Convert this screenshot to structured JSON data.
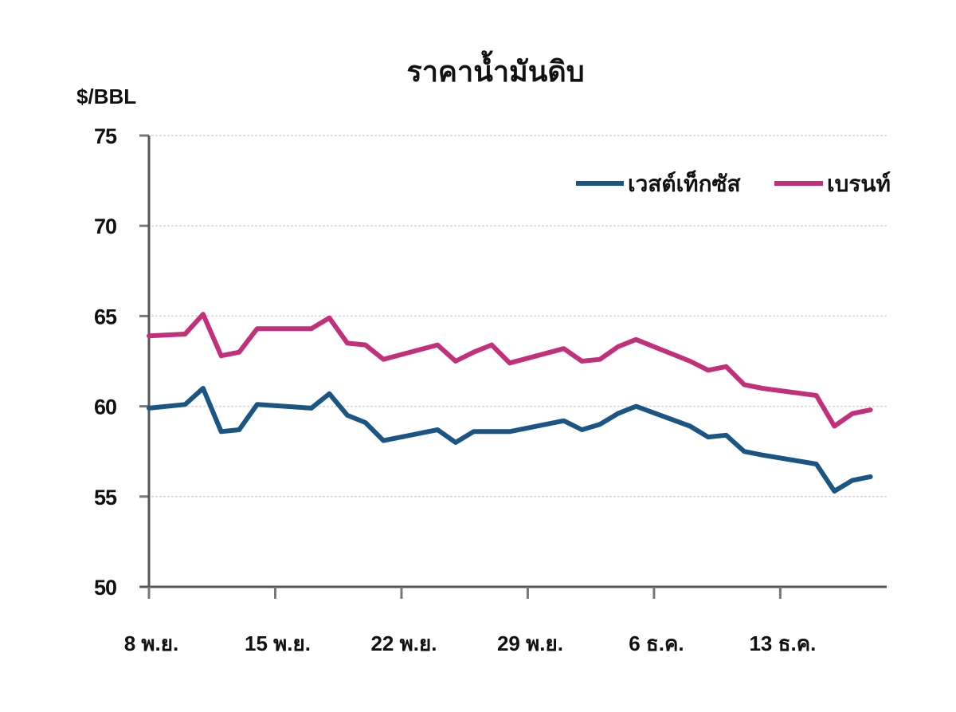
{
  "chart_data": {
    "type": "line",
    "title": "ราคาน้ำมันดิบ",
    "ylabel": "$/BBL",
    "xlabel": "",
    "ylim": [
      50,
      75
    ],
    "yticks": [
      50,
      55,
      60,
      65,
      70,
      75
    ],
    "grid": true,
    "legend_position": "top-right",
    "x_tick_labels": [
      "8 พ.ย.",
      "15 พ.ย.",
      "22 พ.ย.",
      "29 พ.ย.",
      "6 ธ.ค.",
      "13 ธ.ค."
    ],
    "x_tick_day_offsets": [
      0,
      7,
      14,
      21,
      28,
      35
    ],
    "x_day_range": [
      0,
      41
    ],
    "x_day_offsets": [
      0,
      2,
      3,
      4,
      5,
      6,
      9,
      10,
      11,
      12,
      13,
      16,
      17,
      18,
      19,
      20,
      23,
      24,
      25,
      26,
      27,
      30,
      31,
      32,
      33,
      34,
      37,
      38,
      39,
      40
    ],
    "series": [
      {
        "name": "เวสต์เท็กซัส",
        "color": "#1b5583",
        "values": [
          59.9,
          60.1,
          61.0,
          58.6,
          58.7,
          60.1,
          59.9,
          60.7,
          59.5,
          59.1,
          58.1,
          58.7,
          58.0,
          58.6,
          58.6,
          58.6,
          59.2,
          58.7,
          59.0,
          59.6,
          60.0,
          58.9,
          58.3,
          58.4,
          57.5,
          57.3,
          56.8,
          55.3,
          55.9,
          56.1
        ]
      },
      {
        "name": "เบรนท์",
        "color": "#c3307a",
        "values": [
          63.9,
          64.0,
          65.1,
          62.8,
          63.0,
          64.3,
          64.3,
          64.9,
          63.5,
          63.4,
          62.6,
          63.4,
          62.5,
          63.0,
          63.4,
          62.4,
          63.2,
          62.5,
          62.6,
          63.3,
          63.7,
          62.5,
          62.0,
          62.2,
          61.2,
          61.0,
          60.6,
          58.9,
          59.6,
          59.8
        ]
      }
    ]
  }
}
